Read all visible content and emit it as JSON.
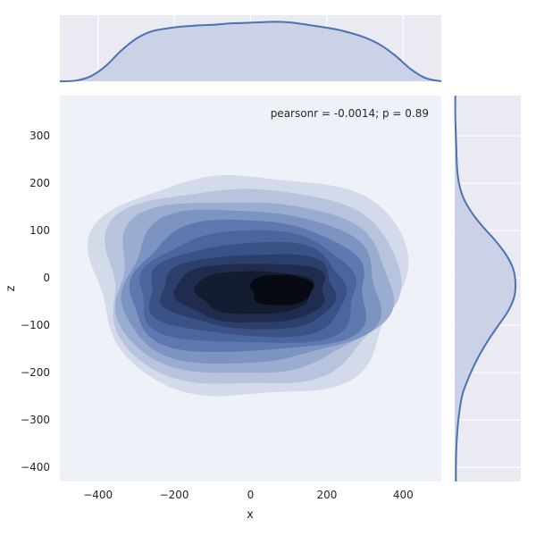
{
  "chart_data": {
    "type": "kde-jointplot",
    "xlabel": "x",
    "ylabel": "z",
    "annotation": "pearsonr = -0.0014; p = 0.89",
    "xlim": [
      -500,
      500
    ],
    "ylim": [
      -430,
      385
    ],
    "x_ticks": [
      -400,
      -200,
      0,
      200,
      400
    ],
    "y_ticks": [
      -400,
      -300,
      -200,
      -100,
      0,
      100,
      200,
      300
    ],
    "x_tick_labels": [
      "−400",
      "−200",
      "0",
      "200",
      "400"
    ],
    "y_tick_labels": [
      "−400",
      "−300",
      "−200",
      "−100",
      "0",
      "100",
      "200",
      "300"
    ],
    "grid": true,
    "colors": {
      "line": "#4c72b0",
      "marginal_fill": "#c3cbe2",
      "axes_bg": "#eaeaf2",
      "joint_bg": "#eef1f7",
      "grid": "#ffffff",
      "contour_levels": [
        "#d3dbea",
        "#b8c4dd",
        "#9aaccf",
        "#7d93c1",
        "#5f79b0",
        "#4b659f",
        "#3b5287",
        "#2c3e6b",
        "#1f2c4d",
        "#141c31",
        "#070a12"
      ]
    },
    "contour_levels": [
      {
        "cx": -5,
        "cy": -12,
        "rx": 400,
        "ry": 230
      },
      {
        "cx": -5,
        "cy": -15,
        "rx": 375,
        "ry": 205
      },
      {
        "cx": -5,
        "cy": -18,
        "rx": 355,
        "ry": 180
      },
      {
        "cx": -5,
        "cy": -20,
        "rx": 330,
        "ry": 160
      },
      {
        "cx": -5,
        "cy": -22,
        "rx": 305,
        "ry": 138
      },
      {
        "cx": -5,
        "cy": -24,
        "rx": 280,
        "ry": 118
      },
      {
        "cx": -5,
        "cy": -26,
        "rx": 255,
        "ry": 98
      },
      {
        "cx": 0,
        "cy": -28,
        "rx": 225,
        "ry": 78
      },
      {
        "cx": 5,
        "cy": -30,
        "rx": 195,
        "ry": 62
      },
      {
        "cx": 10,
        "cy": -30,
        "rx": 150,
        "ry": 45
      },
      {
        "cx": 80,
        "cy": -25,
        "rx": 80,
        "ry": 32
      }
    ],
    "marginal_x": {
      "x": [
        -500,
        -460,
        -420,
        -380,
        -340,
        -300,
        -260,
        -220,
        -180,
        -140,
        -100,
        -60,
        -20,
        20,
        60,
        100,
        140,
        180,
        220,
        260,
        300,
        340,
        380,
        420,
        460,
        500
      ],
      "density": [
        0.0,
        0.01,
        0.08,
        0.25,
        0.5,
        0.7,
        0.82,
        0.87,
        0.9,
        0.92,
        0.93,
        0.95,
        0.96,
        0.97,
        0.98,
        0.97,
        0.94,
        0.9,
        0.86,
        0.8,
        0.72,
        0.6,
        0.42,
        0.2,
        0.05,
        0.0
      ]
    },
    "marginal_y": {
      "y": [
        -430,
        -400,
        -350,
        -300,
        -250,
        -220,
        -190,
        -160,
        -130,
        -100,
        -70,
        -40,
        -10,
        20,
        50,
        80,
        110,
        140,
        170,
        200,
        230,
        260,
        300,
        340,
        385
      ],
      "density": [
        0.02,
        0.02,
        0.03,
        0.06,
        0.12,
        0.2,
        0.3,
        0.42,
        0.56,
        0.72,
        0.88,
        0.98,
        1.0,
        0.96,
        0.84,
        0.66,
        0.45,
        0.27,
        0.14,
        0.07,
        0.04,
        0.03,
        0.02,
        0.01,
        0.01
      ]
    }
  }
}
